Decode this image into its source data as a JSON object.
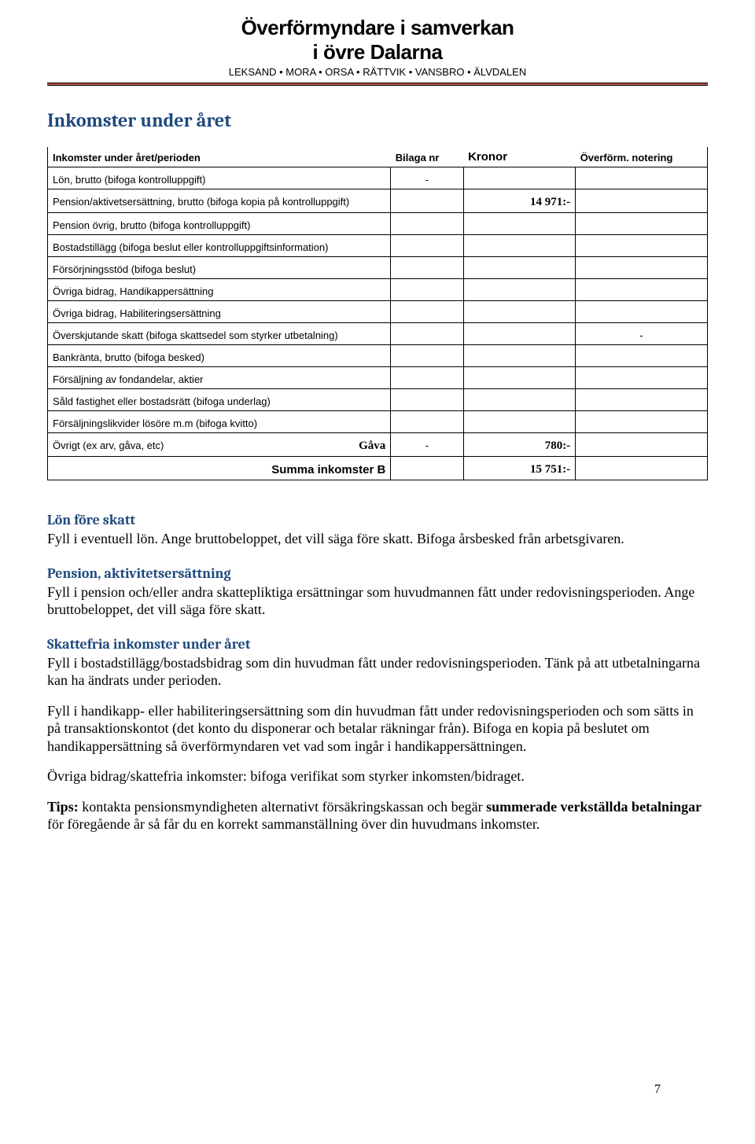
{
  "header": {
    "title1": "Överförmyndare i samverkan",
    "title2": "i övre Dalarna",
    "subtitle": "LEKSAND • MORA • ORSA • RÄTTVIK • VANSBRO • ÄLVDALEN"
  },
  "section_title": "Inkomster under året",
  "table": {
    "header": {
      "desc": "Inkomster under året/perioden",
      "bilaga": "Bilaga nr",
      "kronor": "Kronor",
      "note": "Överförm. notering"
    },
    "rows": [
      {
        "desc": "Lön, brutto (bifoga kontrolluppgift)",
        "bilaga": "-",
        "kronor": "",
        "note": ""
      },
      {
        "desc": "Pension/aktivetsersättning, brutto (bifoga kopia på kontrolluppgift)",
        "bilaga": "",
        "kronor": "14 971:-",
        "note": ""
      },
      {
        "desc": "Pension övrig, brutto (bifoga kontrolluppgift)",
        "bilaga": "",
        "kronor": "",
        "note": ""
      },
      {
        "desc": "Bostadstillägg (bifoga beslut eller kontrolluppgiftsinformation)",
        "bilaga": "",
        "kronor": "",
        "note": ""
      },
      {
        "desc": "Försörjningsstöd (bifoga beslut)",
        "bilaga": "",
        "kronor": "",
        "note": ""
      },
      {
        "desc": "Övriga bidrag, Handikappersättning",
        "bilaga": "",
        "kronor": "",
        "note": ""
      },
      {
        "desc": "Övriga bidrag, Habiliteringsersättning",
        "bilaga": "",
        "kronor": "",
        "note": ""
      },
      {
        "desc": "Överskjutande skatt (bifoga skattsedel som styrker utbetalning)",
        "bilaga": "",
        "kronor": "",
        "note": "-"
      },
      {
        "desc": "Bankränta, brutto (bifoga besked)",
        "bilaga": "",
        "kronor": "",
        "note": ""
      },
      {
        "desc": "Försäljning av fondandelar, aktier",
        "bilaga": "",
        "kronor": "",
        "note": ""
      },
      {
        "desc": "Såld fastighet eller bostadsrätt (bifoga underlag)",
        "bilaga": "",
        "kronor": "",
        "note": ""
      },
      {
        "desc": "Försäljningslikvider lösöre m.m (bifoga kvitto)",
        "bilaga": "",
        "kronor": "",
        "note": ""
      }
    ],
    "gift_row": {
      "desc": "Övrigt (ex arv, gåva, etc)",
      "label": "Gåva",
      "bilaga": "-",
      "kronor": "780:-"
    },
    "sum_row": {
      "label": "Summa inkomster B",
      "kronor": "15 751:-"
    }
  },
  "body": {
    "h1": "Lön före skatt",
    "p1": "Fyll i eventuell lön. Ange bruttobeloppet, det vill säga före skatt. Bifoga årsbesked från arbetsgivaren.",
    "h2": "Pension, aktivitetsersättning",
    "p2": "Fyll i pension och/eller andra skattepliktiga ersättningar som huvudmannen fått under redovisningsperioden. Ange bruttobeloppet, det vill säga före skatt.",
    "h3": "Skattefria inkomster under året",
    "p3": "Fyll i bostadstillägg/bostadsbidrag som din huvudman fått under redovisningsperioden. Tänk på att utbetalningarna kan ha ändrats under perioden.",
    "p4": "Fyll i handikapp- eller habiliteringsersättning som din huvudman fått under redovisningsperioden och som sätts in på transaktionskontot (det konto du disponerar och betalar räkningar från). Bifoga en kopia på beslutet om handikappersättning så överförmyndaren vet vad som ingår i handikappersättningen.",
    "p5": "Övriga bidrag/skattefria inkomster: bifoga verifikat som styrker inkomsten/bidraget.",
    "p6a": "Tips:",
    "p6b": " kontakta pensionsmyndigheten alternativt försäkringskassan och begär ",
    "p6c": "summerade verkställda betalningar",
    "p6d": " för föregående år så får du en korrekt sammanställning över din huvudmans inkomster."
  },
  "page_number": "7"
}
